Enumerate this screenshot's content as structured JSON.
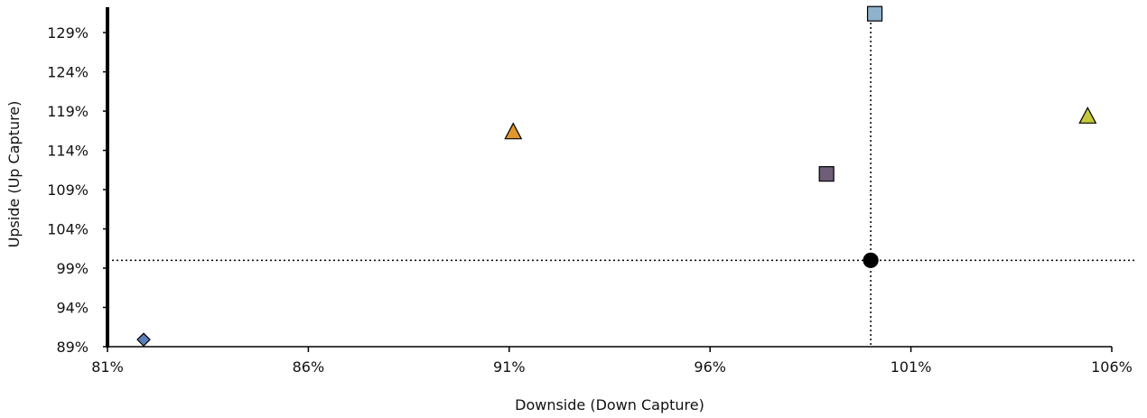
{
  "chart_data": {
    "type": "scatter",
    "title": "",
    "xlabel": "Downside (Down Capture)",
    "ylabel": "Upside (Up Capture)",
    "xlim": [
      81,
      106
    ],
    "ylim": [
      89,
      132
    ],
    "x_ticks": [
      81,
      86,
      91,
      96,
      101,
      106
    ],
    "x_tick_labels": [
      "81%",
      "86%",
      "91%",
      "96%",
      "101%",
      "106%"
    ],
    "y_ticks": [
      89,
      94,
      99,
      104,
      109,
      114,
      119,
      124,
      129
    ],
    "y_tick_labels": [
      "89%",
      "94%",
      "99%",
      "104%",
      "109%",
      "114%",
      "119%",
      "124%",
      "129%"
    ],
    "reference_lines": {
      "x": 100,
      "y": 100,
      "style": "dotted"
    },
    "grid": false,
    "legend": "none",
    "points": [
      {
        "x": 81.9,
        "y": 89.9,
        "marker": "diamond",
        "color": "#5B7DB8"
      },
      {
        "x": 91.1,
        "y": 116.4,
        "marker": "triangle",
        "color": "#E0962C"
      },
      {
        "x": 98.9,
        "y": 111.0,
        "marker": "square",
        "color": "#6E5E78"
      },
      {
        "x": 100.1,
        "y": 131.4,
        "marker": "square",
        "color": "#8DB2CC"
      },
      {
        "x": 105.4,
        "y": 118.4,
        "marker": "triangle",
        "color": "#C5C83A"
      },
      {
        "x": 100.0,
        "y": 100.0,
        "marker": "circle",
        "color": "#000000"
      }
    ]
  }
}
